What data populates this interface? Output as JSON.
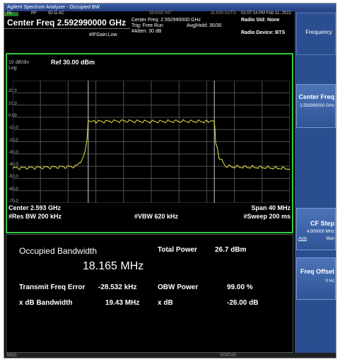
{
  "window": {
    "title": "Agilent Spectrum Analyzer - Occupied BW"
  },
  "status_bar": {
    "rl": "RL",
    "rf": "RF",
    "coupling": "50 Ω AC",
    "sense": "SENSE:INT",
    "align": "ALIGN AUTO",
    "datetime": "01:07:14 PM Feb 21, 2022"
  },
  "header": {
    "center_freq": "Center Freq 2.592990000 GHz",
    "center_freq_small": "Center Freq: 2.592990000 GHz",
    "trig": "Trig: Free Run",
    "avg_hold": "Avg|Hold: 30/30",
    "atten": "#Atten: 30 dB",
    "if_gain": "#IFGain:Low",
    "radio_std": "Radio Std: None",
    "radio_device": "Radio Device: BTS"
  },
  "plot": {
    "scale": "10 dB/div",
    "ref": "Ref 30.00 dBm",
    "scale_type": "Log",
    "y_ticks": [
      "20.0",
      "10.0",
      "0.00",
      "-10.0",
      "-20.0",
      "-30.0",
      "-40.0",
      "-50.0",
      "-60.0",
      "-70.0"
    ],
    "center": "Center 2.593 GHz",
    "span": "Span 40 MHz",
    "res_bw": "#Res BW 200 kHz",
    "vbw": "#VBW 620 kHz",
    "sweep": "#Sweep 200 ms",
    "trace_color": "#e6e64a",
    "frame_color": "#2ecc40"
  },
  "chart_data": {
    "type": "line",
    "x_unit": "MHz offset from center",
    "xlim": [
      -20,
      20
    ],
    "ylim": [
      -70,
      30
    ],
    "series": [
      {
        "x": [
          -20,
          -16,
          -12,
          -10.8,
          -9.8,
          -9.3,
          -9.1,
          -8,
          -4,
          0,
          4,
          8,
          9.1,
          9.3,
          9.8,
          10.8,
          12,
          16,
          20
        ],
        "values": [
          -41.5,
          -41,
          -40.5,
          -40,
          -33,
          -20,
          -3,
          -3.5,
          -3,
          -3.5,
          -3.2,
          -3.5,
          -3,
          -20,
          -33,
          -40,
          -40.5,
          -41,
          -42
        ]
      }
    ]
  },
  "results": {
    "occ_bw_label": "Occupied Bandwidth",
    "occ_bw_value": "18.165 MHz",
    "total_power_label": "Total Power",
    "total_power_value": "26.7 dBm",
    "tx_freq_error_label": "Transmit Freq Error",
    "tx_freq_error_value": "-28.532 kHz",
    "obw_power_label": "OBW Power",
    "obw_power_value": "99.00 %",
    "xdb_bw_label": "x dB Bandwidth",
    "xdb_bw_value": "19.43 MHz",
    "xdb_label": "x dB",
    "xdb_value": "-26.00 dB"
  },
  "bottom_bar": {
    "msg": "MSG",
    "status": "STATUS"
  },
  "softkeys": {
    "menu_title": "Frequency",
    "center_freq_label": "Center Freq",
    "center_freq_value": "2.592990000 GHz",
    "cf_step_label": "CF Step",
    "cf_step_value": "4.000000 MHz",
    "cf_step_auto": "Auto",
    "cf_step_man": "Man",
    "freq_offset_label": "Freq Offset",
    "freq_offset_value": "0 Hz"
  }
}
